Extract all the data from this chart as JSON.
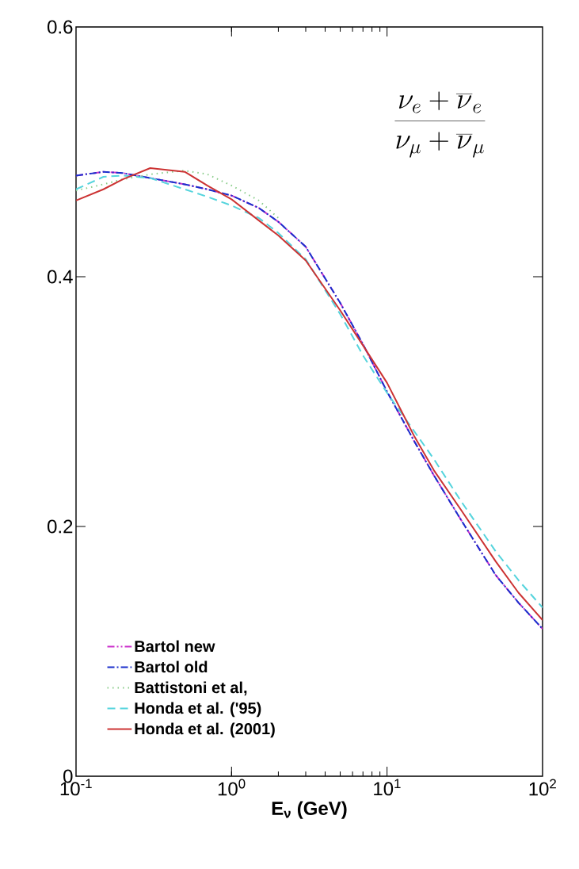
{
  "chart_data": {
    "type": "line",
    "log": "x",
    "xlabel": "E$_{ν}$  (GeV)",
    "annotations": [
      "\\frac{\\nu_e+\\overline{\\nu}_e}{\\nu_\\mu+\\overline{\\nu}_\\mu}"
    ],
    "xlim": [
      0.1,
      100
    ],
    "ylim": [
      0,
      0.6
    ],
    "xticks": [
      {
        "value": 0.1,
        "label": "10$^{-1}$"
      },
      {
        "value": 1,
        "label": "10$^{0}$"
      },
      {
        "value": 10,
        "label": "10$^{1}$"
      },
      {
        "value": 100,
        "label": "10$^{2}$"
      }
    ],
    "yticks": [
      0,
      0.2,
      0.4,
      0.6
    ],
    "legend": "bottom left",
    "x": [
      0.1,
      0.15,
      0.2,
      0.3,
      0.5,
      0.7,
      1,
      1.5,
      2,
      3,
      5,
      7,
      10,
      15,
      20,
      30,
      50,
      70,
      100
    ],
    "series": [
      {
        "name": "Bartol new",
        "color": "#cc33cc",
        "line_style": "dashdotdot",
        "values": [
          0.481,
          0.484,
          0.483,
          0.479,
          0.474,
          0.47,
          0.465,
          0.455,
          0.444,
          0.424,
          0.379,
          0.346,
          0.308,
          0.268,
          0.241,
          0.205,
          0.161,
          0.139,
          0.118
        ]
      },
      {
        "name": "Bartol old",
        "color": "#1a2fcc",
        "line_style": "dashdot",
        "values": [
          0.481,
          0.484,
          0.483,
          0.479,
          0.474,
          0.47,
          0.465,
          0.455,
          0.444,
          0.424,
          0.379,
          0.346,
          0.308,
          0.268,
          0.241,
          0.205,
          0.161,
          0.139,
          0.118
        ]
      },
      {
        "name": "Battistoni et al,",
        "color": "#88cc88",
        "line_style": "dotted",
        "x": [
          0.1,
          0.15,
          0.2,
          0.3,
          0.5,
          0.7,
          1,
          1.5,
          2
        ],
        "values": [
          0.469,
          0.474,
          0.478,
          0.482,
          0.485,
          0.482,
          0.473,
          0.461,
          0.447
        ]
      },
      {
        "name": "Honda et al. ('95)",
        "color": "#55d4dd",
        "line_style": "dashed",
        "values": [
          0.47,
          0.48,
          0.481,
          0.479,
          0.47,
          0.464,
          0.457,
          0.447,
          0.435,
          0.414,
          0.37,
          0.337,
          0.307,
          0.276,
          0.254,
          0.22,
          0.18,
          0.157,
          0.135
        ]
      },
      {
        "name": "Honda et al. (2001)",
        "color": "#cc3333",
        "line_style": "solid",
        "values": [
          0.461,
          0.47,
          0.478,
          0.487,
          0.484,
          0.473,
          0.462,
          0.445,
          0.433,
          0.413,
          0.373,
          0.345,
          0.315,
          0.272,
          0.245,
          0.213,
          0.172,
          0.147,
          0.125
        ]
      }
    ]
  }
}
